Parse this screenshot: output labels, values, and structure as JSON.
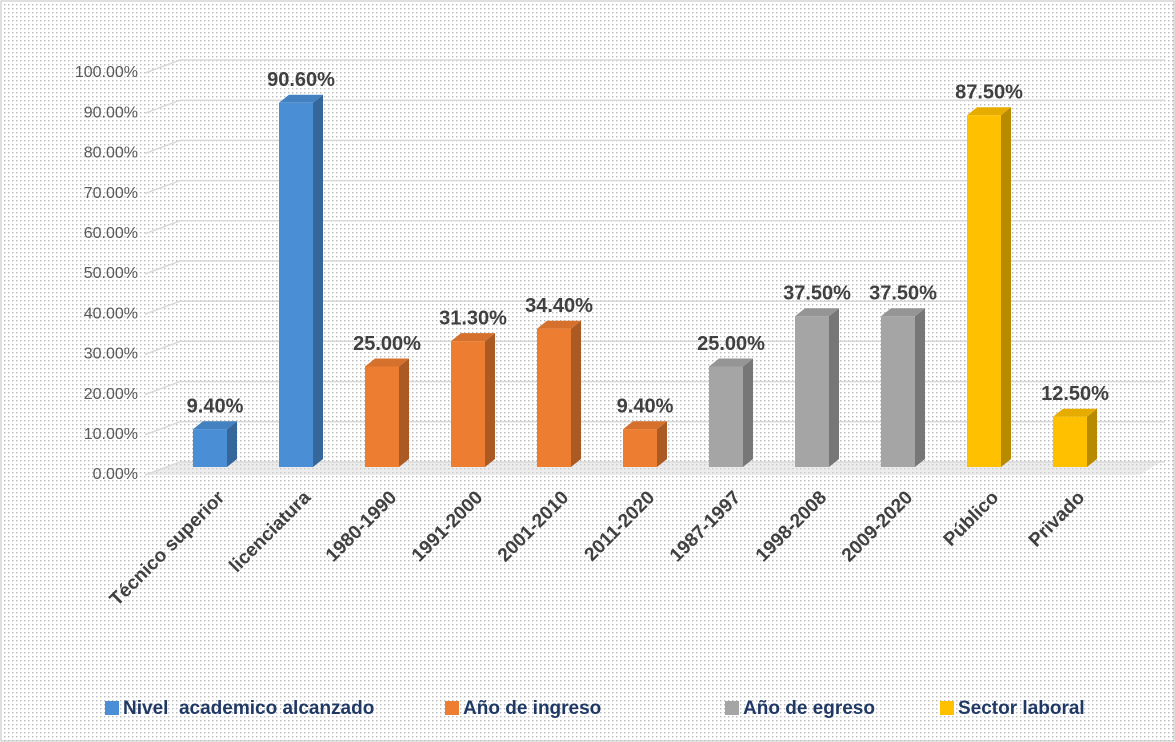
{
  "chart_data": {
    "type": "bar3d",
    "categories": [
      "Técnico superior",
      "licenciatura",
      "1980-1990",
      "1991-2000",
      "2001-2010",
      "2011-2020",
      "1987-1997",
      "1998-2008",
      "2009-2020",
      "Público",
      "Privado"
    ],
    "series": [
      {
        "name": "Nivel  academico alcanzado",
        "color": "#4a8fd6",
        "values": [
          9.4,
          90.6,
          null,
          null,
          null,
          null,
          null,
          null,
          null,
          null,
          null
        ],
        "value_labels": [
          "9.40%",
          "90.60%",
          null,
          null,
          null,
          null,
          null,
          null,
          null,
          null,
          null
        ]
      },
      {
        "name": "Año de ingreso",
        "color": "#ed7d31",
        "values": [
          null,
          null,
          25,
          31.3,
          34.4,
          9.4,
          null,
          null,
          null,
          null,
          null
        ],
        "value_labels": [
          null,
          null,
          "25.00%",
          "31.30%",
          "34.40%",
          "9.40%",
          null,
          null,
          null,
          null,
          null
        ]
      },
      {
        "name": "Año de egreso",
        "color": "#a5a5a5",
        "values": [
          null,
          null,
          null,
          null,
          null,
          null,
          25,
          37.5,
          37.5,
          null,
          null
        ],
        "value_labels": [
          null,
          null,
          null,
          null,
          null,
          null,
          "25.00%",
          "37.50%",
          "37.50%",
          null,
          null
        ]
      },
      {
        "name": "Sector laboral",
        "color": "#ffc000",
        "values": [
          null,
          null,
          null,
          null,
          null,
          null,
          null,
          null,
          null,
          87.5,
          12.5
        ],
        "value_labels": [
          null,
          null,
          null,
          null,
          null,
          null,
          null,
          null,
          null,
          "87.50%",
          "12.50%"
        ]
      }
    ],
    "ylim": [
      0,
      100
    ],
    "yticks": [
      {
        "value": 0,
        "label": "0.00%"
      },
      {
        "value": 10,
        "label": "10.00%"
      },
      {
        "value": 20,
        "label": "20.00%"
      },
      {
        "value": 30,
        "label": "30.00%"
      },
      {
        "value": 40,
        "label": "40.00%"
      },
      {
        "value": 50,
        "label": "50.00%"
      },
      {
        "value": 60,
        "label": "60.00%"
      },
      {
        "value": 70,
        "label": "70.00%"
      },
      {
        "value": 80,
        "label": "80.00%"
      },
      {
        "value": 90,
        "label": "90.00%"
      },
      {
        "value": 100,
        "label": "100.00%"
      }
    ],
    "grid": true,
    "legend": "bottom"
  }
}
